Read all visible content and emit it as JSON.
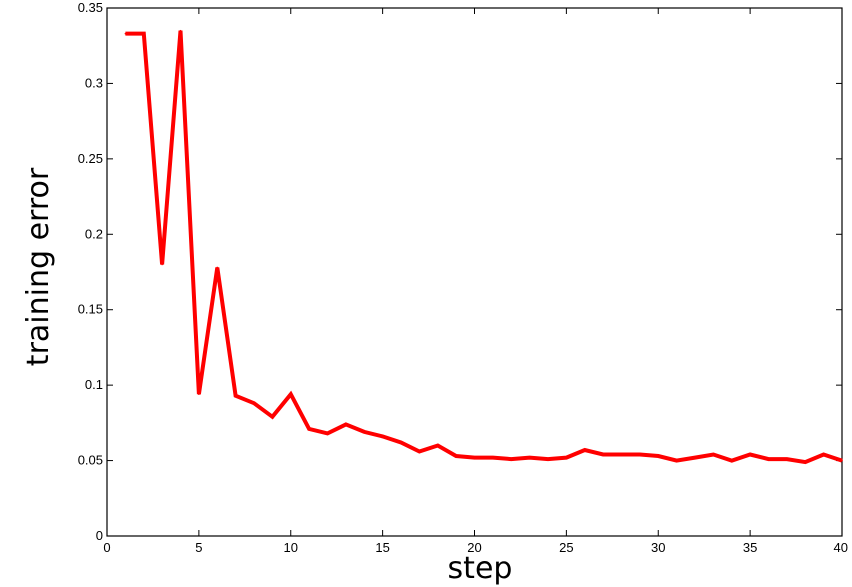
{
  "chart_data": {
    "type": "line",
    "title": "",
    "xlabel": "step",
    "ylabel": "training error",
    "xlim": [
      0,
      40
    ],
    "ylim": [
      0,
      0.35
    ],
    "xticks": [
      0,
      5,
      10,
      15,
      20,
      25,
      30,
      35,
      40
    ],
    "xtick_labels": [
      "0",
      "5",
      "10",
      "15",
      "20",
      "25",
      "30",
      "35",
      "40"
    ],
    "yticks": [
      0,
      0.05,
      0.1,
      0.15,
      0.2,
      0.25,
      0.3,
      0.35
    ],
    "ytick_labels": [
      "0",
      "0.05",
      "0.1",
      "0.15",
      "0.2",
      "0.25",
      "0.3",
      "0.35"
    ],
    "grid": false,
    "legend": "none",
    "series": [
      {
        "color": "#ff0000",
        "x": [
          1,
          2,
          3,
          4,
          5,
          6,
          7,
          8,
          9,
          10,
          11,
          12,
          13,
          14,
          15,
          16,
          17,
          18,
          19,
          20,
          21,
          22,
          23,
          24,
          25,
          26,
          27,
          28,
          29,
          30,
          31,
          32,
          33,
          34,
          35,
          36,
          37,
          38,
          39,
          40
        ],
        "y": [
          0.333,
          0.333,
          0.18,
          0.335,
          0.094,
          0.178,
          0.093,
          0.088,
          0.079,
          0.094,
          0.071,
          0.068,
          0.074,
          0.069,
          0.066,
          0.062,
          0.056,
          0.06,
          0.053,
          0.052,
          0.052,
          0.051,
          0.052,
          0.051,
          0.052,
          0.057,
          0.054,
          0.054,
          0.054,
          0.053,
          0.05,
          0.052,
          0.054,
          0.05,
          0.054,
          0.051,
          0.051,
          0.049,
          0.054,
          0.05
        ]
      }
    ]
  }
}
